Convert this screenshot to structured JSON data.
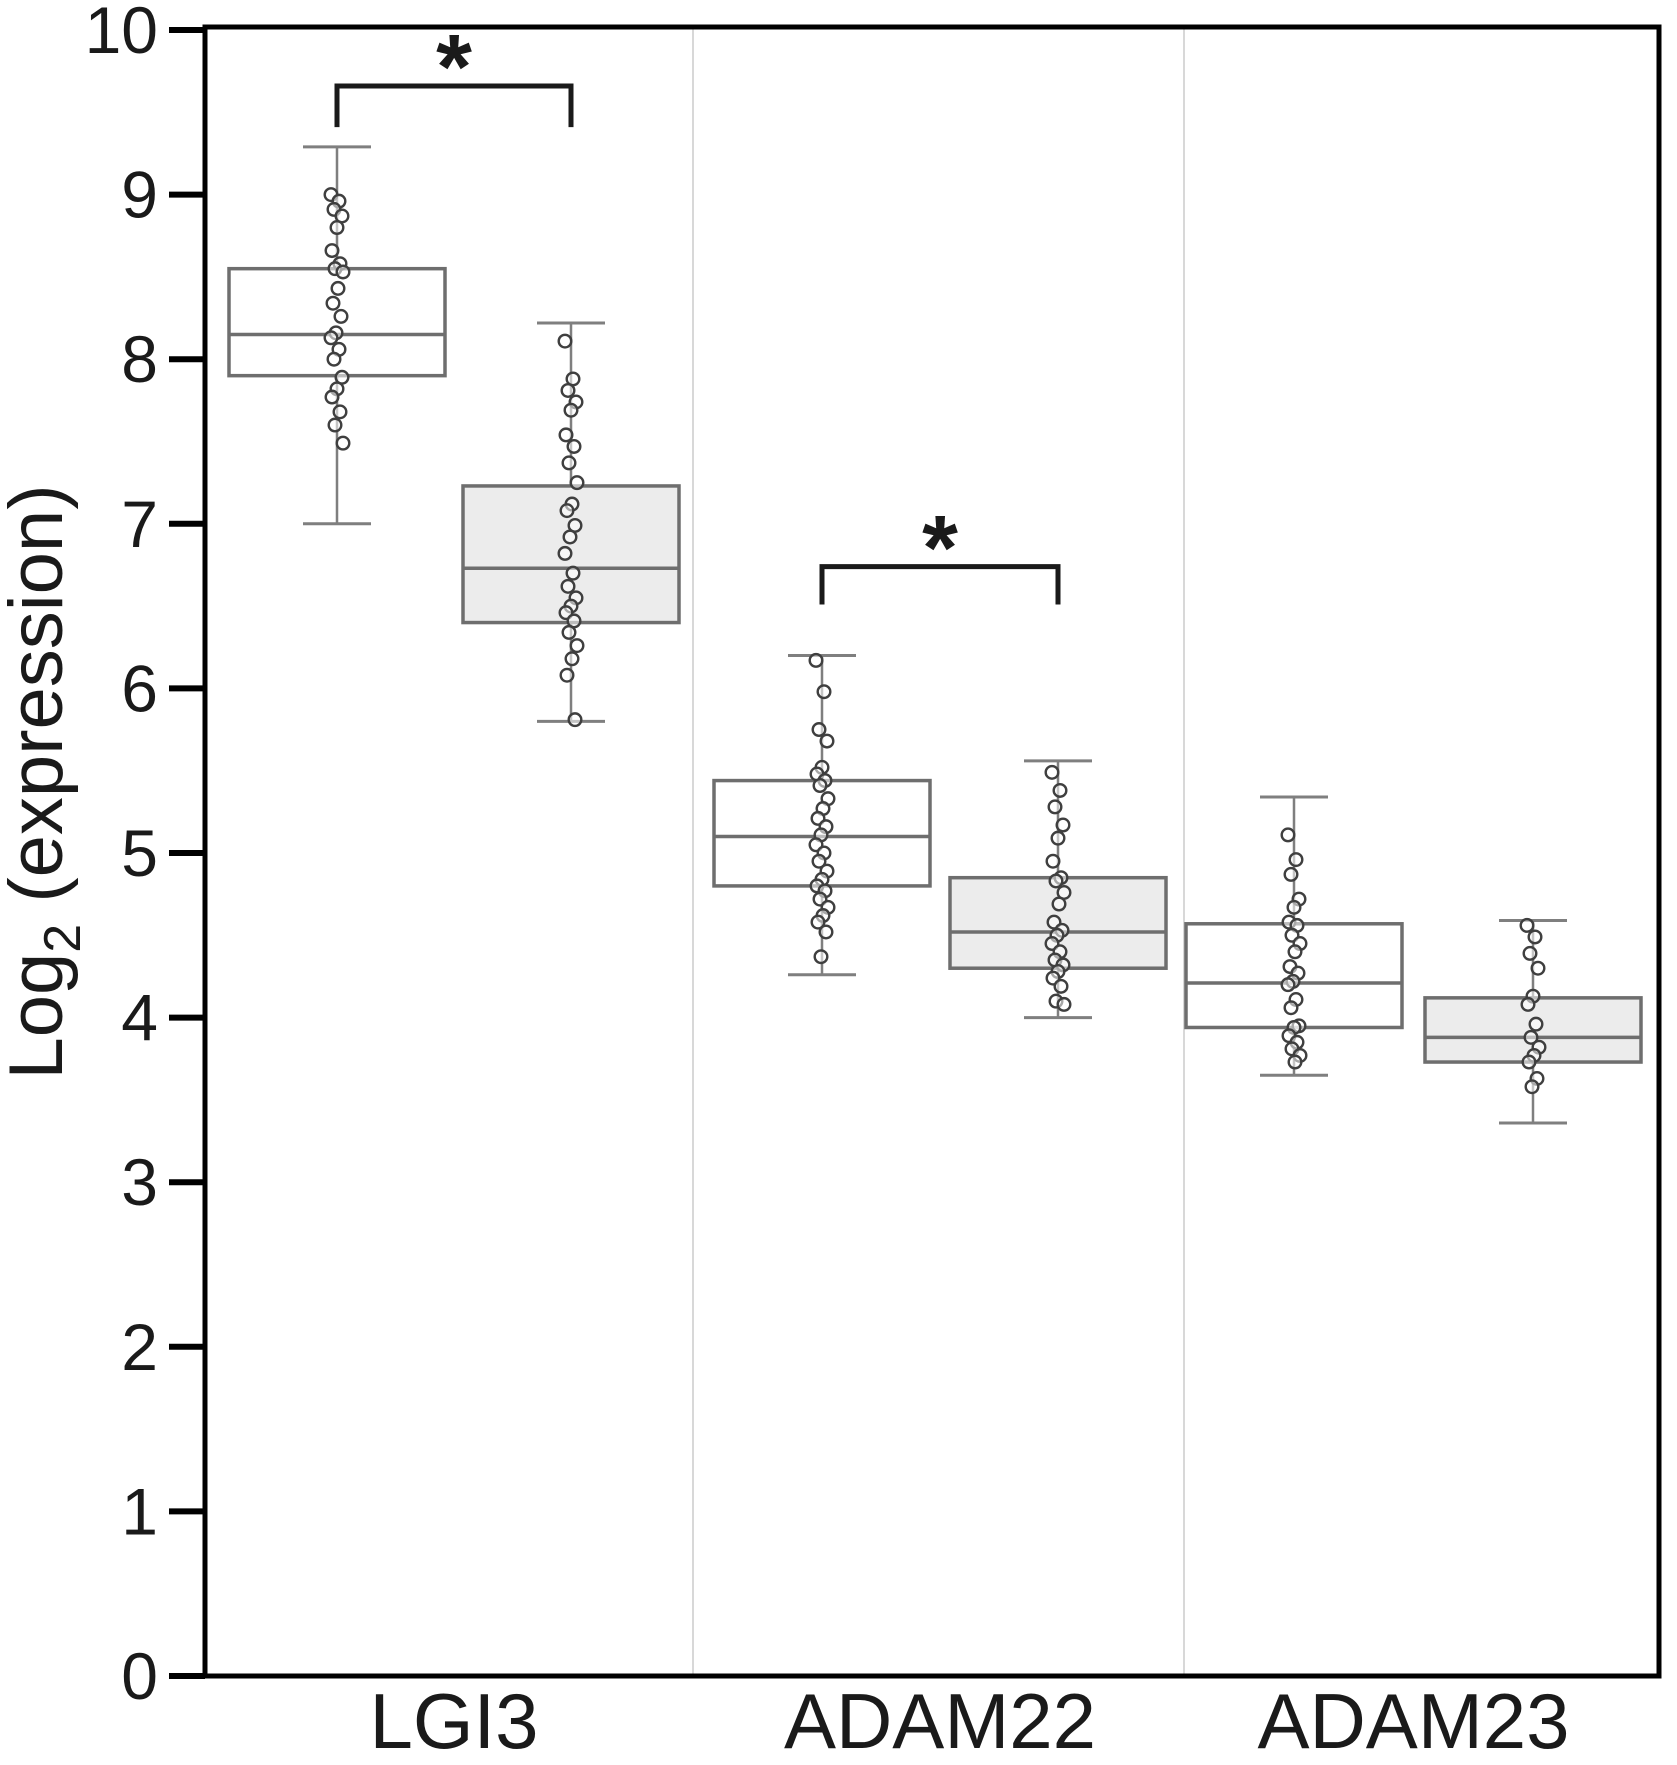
{
  "figure": {
    "type": "boxplot-figure",
    "background": "#ffffff"
  },
  "chart_data": {
    "type": "boxplot",
    "title": "",
    "xlabel": "",
    "ylabel": "Log2 (expression)",
    "ylabel_parts": {
      "base": "Log",
      "subscript": "2",
      "rest": " (expression)"
    },
    "ylim": [
      0,
      10
    ],
    "yticks": [
      0,
      1,
      2,
      3,
      4,
      5,
      6,
      7,
      8,
      9,
      10
    ],
    "grid": false,
    "legend_position": "none",
    "group_separators": true,
    "groups": [
      {
        "label": "LGI3",
        "boxes": [
          {
            "fill": "white",
            "whisker_low": 7.0,
            "q1": 7.9,
            "median": 8.15,
            "q3": 8.55,
            "whisker_high": 9.29,
            "points": [
              9.0,
              8.96,
              8.91,
              8.87,
              8.8,
              8.66,
              8.58,
              8.55,
              8.53,
              8.43,
              8.34,
              8.26,
              8.16,
              8.13,
              8.06,
              8.0,
              7.89,
              7.82,
              7.77,
              7.68,
              7.6,
              7.49
            ]
          },
          {
            "fill": "grey",
            "whisker_low": 5.8,
            "q1": 6.4,
            "median": 6.73,
            "q3": 7.23,
            "whisker_high": 8.22,
            "points": [
              8.11,
              7.88,
              7.81,
              7.74,
              7.69,
              7.54,
              7.47,
              7.37,
              7.25,
              7.12,
              7.08,
              6.99,
              6.92,
              6.82,
              6.7,
              6.62,
              6.55,
              6.5,
              6.46,
              6.41,
              6.34,
              6.26,
              6.18,
              6.08,
              5.81
            ]
          }
        ],
        "significance": {
          "symbol": "*",
          "bracket_value": 9.66,
          "bracket_drop_value": 9.41,
          "star_value": 9.85
        }
      },
      {
        "label": "ADAM22",
        "boxes": [
          {
            "fill": "white",
            "whisker_low": 4.26,
            "q1": 4.8,
            "median": 5.1,
            "q3": 5.44,
            "whisker_high": 6.2,
            "points": [
              6.17,
              5.98,
              5.75,
              5.68,
              5.52,
              5.48,
              5.44,
              5.41,
              5.33,
              5.27,
              5.21,
              5.16,
              5.11,
              5.05,
              5.0,
              4.95,
              4.89,
              4.84,
              4.8,
              4.77,
              4.72,
              4.67,
              4.62,
              4.58,
              4.52,
              4.37
            ]
          },
          {
            "fill": "grey",
            "whisker_low": 4.0,
            "q1": 4.3,
            "median": 4.52,
            "q3": 4.85,
            "whisker_high": 5.56,
            "points": [
              5.49,
              5.38,
              5.28,
              5.17,
              5.09,
              4.95,
              4.85,
              4.83,
              4.76,
              4.69,
              4.58,
              4.53,
              4.5,
              4.45,
              4.4,
              4.35,
              4.32,
              4.28,
              4.24,
              4.19,
              4.1,
              4.08
            ]
          }
        ],
        "significance": {
          "symbol": "*",
          "bracket_value": 6.74,
          "bracket_drop_value": 6.51,
          "star_value": 6.93
        }
      },
      {
        "label": "ADAM23",
        "boxes": [
          {
            "fill": "white",
            "whisker_low": 3.65,
            "q1": 3.94,
            "median": 4.21,
            "q3": 4.57,
            "whisker_high": 5.34,
            "points": [
              5.11,
              4.96,
              4.87,
              4.72,
              4.67,
              4.58,
              4.56,
              4.5,
              4.45,
              4.4,
              4.31,
              4.27,
              4.22,
              4.2,
              4.11,
              4.06,
              3.95,
              3.94,
              3.89,
              3.85,
              3.81,
              3.77,
              3.73
            ]
          },
          {
            "fill": "grey",
            "whisker_low": 3.36,
            "q1": 3.73,
            "median": 3.88,
            "q3": 4.12,
            "whisker_high": 4.59,
            "points": [
              4.56,
              4.49,
              4.39,
              4.3,
              4.13,
              4.08,
              3.96,
              3.88,
              3.82,
              3.77,
              3.73,
              3.63,
              3.58
            ]
          }
        ],
        "significance": null
      }
    ]
  },
  "style": {
    "axis_color": "#000000",
    "tick_label_color": "#1a1a1a",
    "box_stroke": "#6e6e6e",
    "whisker_color": "#7f7f7f",
    "median_color": "#6e6e6e",
    "box_fill_white": "#ffffff",
    "box_fill_grey": "#ececec",
    "point_stroke": "#3f3f3f",
    "point_fill": "#ffffff",
    "separator_color": "#d8d8d8",
    "bracket_color": "#1a1a1a"
  }
}
